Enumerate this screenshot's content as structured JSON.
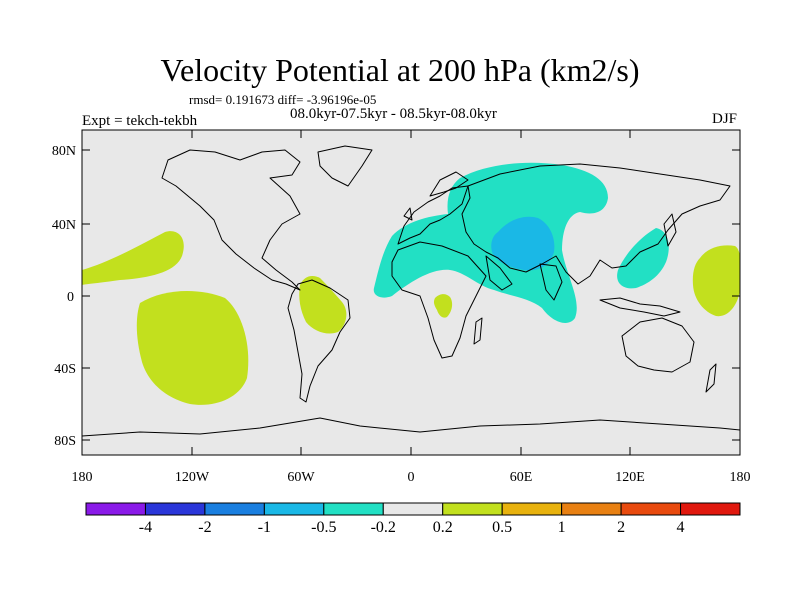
{
  "title": "Velocity Potential at 200 hPa (km2/s)",
  "stats": "rmsd= 0.191673 diff= -3.96196e-05",
  "experiment": "Expt = tekch-tekbh",
  "period": "08.0kyr-07.5kyr - 08.5kyr-08.0kyr",
  "season": "DJF",
  "lat_labels": [
    "80N",
    "40N",
    "0",
    "40S",
    "80S"
  ],
  "lon_labels": [
    "180",
    "120W",
    "60W",
    "0",
    "60E",
    "120E",
    "180"
  ],
  "colorbar": {
    "colors": [
      "#8a1ae8",
      "#2a36d9",
      "#1a7fe0",
      "#1ab8e6",
      "#22e0c4",
      "#e8e8e8",
      "#c2e01e",
      "#e8b20e",
      "#e88012",
      "#e84a0e",
      "#e0180e"
    ],
    "labels": [
      "-4",
      "-2",
      "-1",
      "-0.5",
      "-0.2",
      "0.2",
      "0.5",
      "1",
      "2",
      "4"
    ]
  },
  "colors": {
    "background": "#e8e8e8",
    "positive_fill": "#c2e01e",
    "negative_fill": "#22e0c4",
    "strong_negative_fill": "#1ab8e6",
    "coastline": "#000000"
  }
}
